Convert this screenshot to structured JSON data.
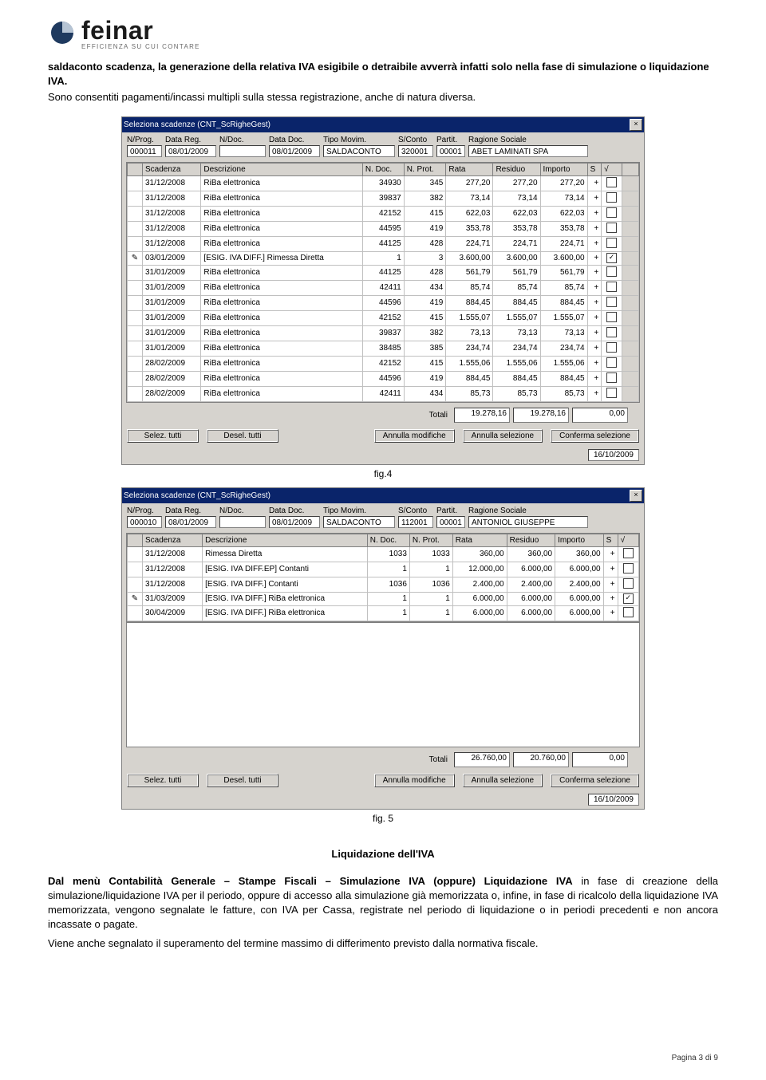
{
  "logo": {
    "name": "feinar",
    "sub": "EFFICIENZA SU CUI CONTARE"
  },
  "intro_bold": "saldaconto scadenza, la generazione della relativa IVA esigibile o detraibile avverrà infatti solo nella fase di simulazione o liquidazione IVA.",
  "intro_reg": "Sono consentiti pagamenti/incassi multipli sulla stessa registrazione, anche di natura diversa.",
  "win1": {
    "title": "Seleziona scadenze  (CNT_ScRigheGest)",
    "header": {
      "nprog_lbl": "N/Prog.",
      "nprog": "000011",
      "datareg_lbl": "Data Reg.",
      "datareg": "08/01/2009",
      "ndoc_lbl": "N/Doc.",
      "ndoc": "",
      "datadoc_lbl": "Data Doc.",
      "datadoc": "08/01/2009",
      "tipo_lbl": "Tipo Movim.",
      "tipo": "SALDACONTO",
      "sconto_lbl": "S/Conto",
      "sconto": "320001",
      "partit_lbl": "Partit.",
      "partit": "00001",
      "rag_lbl": "Ragione Sociale",
      "rag": "ABET LAMINATI SPA"
    },
    "cols": [
      "",
      "Scadenza",
      "Descrizione",
      "N. Doc.",
      "N. Prot.",
      "Rata",
      "Residuo",
      "Importo",
      "S",
      "√",
      ""
    ],
    "rows": [
      [
        "",
        "31/12/2008",
        "RiBa elettronica",
        "34930",
        "345",
        "277,20",
        "277,20",
        "277,20",
        "+",
        "",
        ""
      ],
      [
        "",
        "31/12/2008",
        "RiBa elettronica",
        "39837",
        "382",
        "73,14",
        "73,14",
        "73,14",
        "+",
        "",
        ""
      ],
      [
        "",
        "31/12/2008",
        "RiBa elettronica",
        "42152",
        "415",
        "622,03",
        "622,03",
        "622,03",
        "+",
        "",
        ""
      ],
      [
        "",
        "31/12/2008",
        "RiBa elettronica",
        "44595",
        "419",
        "353,78",
        "353,78",
        "353,78",
        "+",
        "",
        ""
      ],
      [
        "",
        "31/12/2008",
        "RiBa elettronica",
        "44125",
        "428",
        "224,71",
        "224,71",
        "224,71",
        "+",
        "",
        ""
      ],
      [
        "✎",
        "03/01/2009",
        "[ESIG. IVA DIFF.] Rimessa Diretta",
        "1",
        "3",
        "3.600,00",
        "3.600,00",
        "3.600,00",
        "+",
        "✓",
        ""
      ],
      [
        "",
        "31/01/2009",
        "RiBa elettronica",
        "44125",
        "428",
        "561,79",
        "561,79",
        "561,79",
        "+",
        "",
        ""
      ],
      [
        "",
        "31/01/2009",
        "RiBa elettronica",
        "42411",
        "434",
        "85,74",
        "85,74",
        "85,74",
        "+",
        "",
        ""
      ],
      [
        "",
        "31/01/2009",
        "RiBa elettronica",
        "44596",
        "419",
        "884,45",
        "884,45",
        "884,45",
        "+",
        "",
        ""
      ],
      [
        "",
        "31/01/2009",
        "RiBa elettronica",
        "42152",
        "415",
        "1.555,07",
        "1.555,07",
        "1.555,07",
        "+",
        "",
        ""
      ],
      [
        "",
        "31/01/2009",
        "RiBa elettronica",
        "39837",
        "382",
        "73,13",
        "73,13",
        "73,13",
        "+",
        "",
        ""
      ],
      [
        "",
        "31/01/2009",
        "RiBa elettronica",
        "38485",
        "385",
        "234,74",
        "234,74",
        "234,74",
        "+",
        "",
        ""
      ],
      [
        "",
        "28/02/2009",
        "RiBa elettronica",
        "42152",
        "415",
        "1.555,06",
        "1.555,06",
        "1.555,06",
        "+",
        "",
        ""
      ],
      [
        "",
        "28/02/2009",
        "RiBa elettronica",
        "44596",
        "419",
        "884,45",
        "884,45",
        "884,45",
        "+",
        "",
        ""
      ],
      [
        "",
        "28/02/2009",
        "RiBa elettronica",
        "42411",
        "434",
        "85,73",
        "85,73",
        "85,73",
        "+",
        "",
        ""
      ]
    ],
    "totals": {
      "lbl": "Totali",
      "t1": "19.278,16",
      "t2": "19.278,16",
      "t3": "0,00"
    },
    "buttons": {
      "sel": "Selez. tutti",
      "des": "Desel. tutti",
      "ann": "Annulla modifiche",
      "annsel": "Annulla selezione",
      "conf": "Conferma selezione"
    },
    "date": "16/10/2009"
  },
  "fig4": "fig.4",
  "win2": {
    "title": "Seleziona scadenze  (CNT_ScRigheGest)",
    "header": {
      "nprog_lbl": "N/Prog.",
      "nprog": "000010",
      "datareg_lbl": "Data Reg.",
      "datareg": "08/01/2009",
      "ndoc_lbl": "N/Doc.",
      "ndoc": "",
      "datadoc_lbl": "Data Doc.",
      "datadoc": "08/01/2009",
      "tipo_lbl": "Tipo Movim.",
      "tipo": "SALDACONTO",
      "sconto_lbl": "S/Conto",
      "sconto": "112001",
      "partit_lbl": "Partit.",
      "partit": "00001",
      "rag_lbl": "Ragione Sociale",
      "rag": "ANTONIOL GIUSEPPE"
    },
    "cols": [
      "",
      "Scadenza",
      "Descrizione",
      "N. Doc.",
      "N. Prot.",
      "Rata",
      "Residuo",
      "Importo",
      "S",
      "√"
    ],
    "rows": [
      [
        "",
        "31/12/2008",
        "Rimessa Diretta",
        "1033",
        "1033",
        "360,00",
        "360,00",
        "360,00",
        "+",
        ""
      ],
      [
        "",
        "31/12/2008",
        "[ESIG. IVA DIFF.EP] Contanti",
        "1",
        "1",
        "12.000,00",
        "6.000,00",
        "6.000,00",
        "+",
        ""
      ],
      [
        "",
        "31/12/2008",
        "[ESIG. IVA DIFF.] Contanti",
        "1036",
        "1036",
        "2.400,00",
        "2.400,00",
        "2.400,00",
        "+",
        ""
      ],
      [
        "✎",
        "31/03/2009",
        "[ESIG. IVA DIFF.] RiBa elettronica",
        "1",
        "1",
        "6.000,00",
        "6.000,00",
        "6.000,00",
        "+",
        "✓"
      ],
      [
        "",
        "30/04/2009",
        "[ESIG. IVA DIFF.] RiBa elettronica",
        "1",
        "1",
        "6.000,00",
        "6.000,00",
        "6.000,00",
        "+",
        ""
      ]
    ],
    "totals": {
      "lbl": "Totali",
      "t1": "26.760,00",
      "t2": "20.760,00",
      "t3": "0,00"
    },
    "buttons": {
      "sel": "Selez. tutti",
      "des": "Desel. tutti",
      "ann": "Annulla modifiche",
      "annsel": "Annulla selezione",
      "conf": "Conferma selezione"
    },
    "date": "16/10/2009"
  },
  "fig5": "fig. 5",
  "sec_title": "Liquidazione dell'IVA",
  "para1_pre": "Dal menù Contabilità Generale – Stampe Fiscali – Simulazione IVA (oppure) Liquidazione IVA",
  "para1_rest": " in fase di creazione della simulazione/liquidazione IVA per il periodo, oppure di accesso alla simulazione già memorizzata o, infine, in fase di ricalcolo della liquidazione IVA memorizzata, vengono segnalate le fatture, con IVA per Cassa, registrate nel periodo di liquidazione o in periodi precedenti e non ancora incassate o pagate.",
  "para2": "Viene anche segnalato il superamento del termine massimo di differimento previsto dalla normativa fiscale.",
  "page_num": "Pagina 3 di 9"
}
